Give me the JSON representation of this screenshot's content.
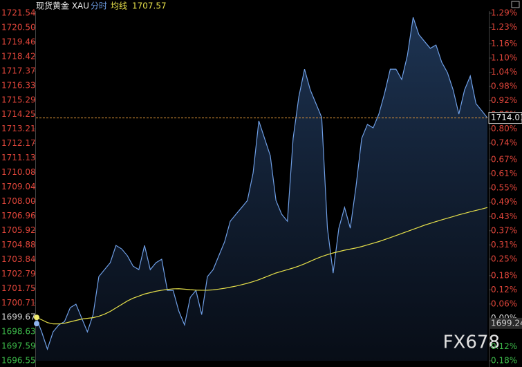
{
  "chart_data": {
    "type": "line",
    "title": "现货黄金 XAU",
    "ma_value": 1707.57,
    "price_tag": 1714.01,
    "cursor_tag": 1699.24,
    "watermark": "FX678",
    "ylim": [
      1696.55,
      1721.54
    ],
    "yticks": [
      1721.54,
      {
        "value": 1720.5,
        "label": "1720.50"
      },
      1719.46,
      1718.42,
      1717.37,
      1716.33,
      1715.29,
      1714.25,
      1713.21,
      1712.17,
      1711.13,
      1710.08,
      1709.04,
      {
        "value": 1708,
        "label": "1708.00"
      },
      1706.96,
      1705.92,
      1704.88,
      1703.84,
      1702.79,
      1701.75,
      1700.71,
      1699.67,
      1698.63,
      1697.59,
      1696.55
    ],
    "y2lim": [
      -0.18,
      1.29
    ],
    "y2ticks": [
      {
        "value": 1.29,
        "label": "1.29%"
      },
      {
        "value": 1.23,
        "label": "1.23%"
      },
      {
        "value": 1.16,
        "label": "1.16%"
      },
      {
        "value": 1.1,
        "label": "1.10%"
      },
      {
        "value": 1.04,
        "label": "1.04%"
      },
      {
        "value": 0.98,
        "label": "0.98%"
      },
      {
        "value": 0.92,
        "label": "0.92%"
      },
      {
        "value": 0.86,
        "label": "0.86%"
      },
      {
        "value": 0.8,
        "label": "0.80%"
      },
      {
        "value": 0.74,
        "label": "0.74%"
      },
      {
        "value": 0.67,
        "label": "0.67%"
      },
      {
        "value": 0.61,
        "label": "0.61%"
      },
      {
        "value": 0.55,
        "label": "0.55%"
      },
      {
        "value": 0.49,
        "label": "0.49%"
      },
      {
        "value": 0.43,
        "label": "0.43%"
      },
      {
        "value": 0.37,
        "label": "0.37%"
      },
      {
        "value": 0.31,
        "label": "0.31%"
      },
      {
        "value": 0.25,
        "label": "0.25%"
      },
      {
        "value": 0.18,
        "label": "0.18%"
      },
      {
        "value": 0.12,
        "label": "0.12%"
      },
      {
        "value": 0.06,
        "label": "0.06%"
      },
      {
        "value": 0,
        "label": "0.00%"
      },
      {
        "value": -0.12,
        "label": "0.12%"
      },
      {
        "value": -0.18,
        "label": "0.18%"
      }
    ],
    "series": [
      {
        "name": "分时",
        "color": "#6f9fe6",
        "values": [
          1699.67,
          1698.63,
          1697.39,
          1698.63,
          1699.13,
          1699.37,
          1700.37,
          1700.62,
          1699.62,
          1698.63,
          1699.87,
          1702.6,
          1703.1,
          1703.6,
          1704.84,
          1704.59,
          1704.1,
          1703.35,
          1703.1,
          1704.84,
          1703.1,
          1703.6,
          1703.85,
          1701.61,
          1701.61,
          1700.12,
          1699.13,
          1701.11,
          1701.61,
          1699.87,
          1702.6,
          1703.1,
          1704.1,
          1705.09,
          1706.58,
          1707.08,
          1707.57,
          1708.07,
          1710.06,
          1713.79,
          1712.54,
          1711.3,
          1708.07,
          1707.08,
          1706.58,
          1712.54,
          1715.53,
          1717.51,
          1716.02,
          1715.03,
          1714.04,
          1706.08,
          1702.85,
          1706.08,
          1707.57,
          1706.08,
          1709.07,
          1712.54,
          1713.54,
          1713.29,
          1714.28,
          1715.77,
          1717.51,
          1717.51,
          1716.77,
          1718.51,
          1721.24,
          1720.0,
          1719.5,
          1719.01,
          1719.25,
          1718.01,
          1717.27,
          1716.02,
          1714.28,
          1716.02,
          1717.02,
          1715.03,
          1714.53,
          1714.01
        ]
      },
      {
        "name": "均线",
        "color": "#e6e04a",
        "values": [
          1699.67,
          1699.5,
          1699.3,
          1699.2,
          1699.2,
          1699.25,
          1699.35,
          1699.45,
          1699.55,
          1699.6,
          1699.65,
          1699.75,
          1699.9,
          1700.1,
          1700.35,
          1700.6,
          1700.85,
          1701.05,
          1701.2,
          1701.35,
          1701.45,
          1701.55,
          1701.62,
          1701.68,
          1701.72,
          1701.73,
          1701.7,
          1701.66,
          1701.63,
          1701.62,
          1701.62,
          1701.65,
          1701.7,
          1701.76,
          1701.84,
          1701.92,
          1702.02,
          1702.12,
          1702.24,
          1702.38,
          1702.54,
          1702.7,
          1702.86,
          1702.98,
          1703.1,
          1703.22,
          1703.36,
          1703.52,
          1703.7,
          1703.88,
          1704.04,
          1704.18,
          1704.3,
          1704.4,
          1704.5,
          1704.58,
          1704.66,
          1704.76,
          1704.88,
          1705.0,
          1705.12,
          1705.26,
          1705.4,
          1705.55,
          1705.7,
          1705.85,
          1706.0,
          1706.15,
          1706.3,
          1706.43,
          1706.56,
          1706.68,
          1706.8,
          1706.92,
          1707.04,
          1707.15,
          1707.26,
          1707.36,
          1707.46,
          1707.57
        ]
      }
    ]
  }
}
